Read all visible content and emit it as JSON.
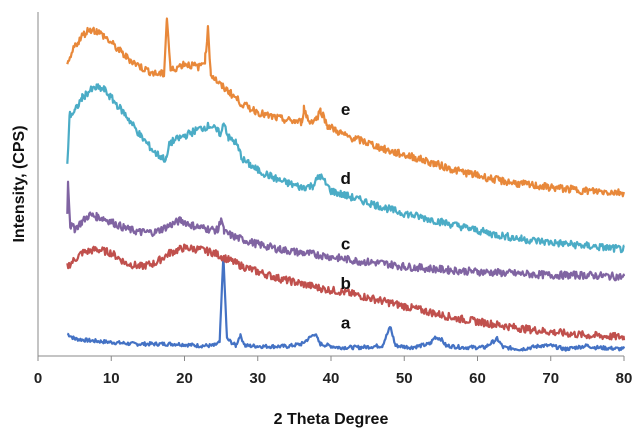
{
  "chart_data": {
    "type": "line",
    "title": "",
    "xlabel": "2 Theta Degree",
    "ylabel": "Intensity, (CPS)",
    "xlim": [
      0,
      80
    ],
    "ylim": [
      0,
      100
    ],
    "x_ticks": [
      0,
      10,
      20,
      30,
      40,
      50,
      60,
      70,
      80
    ],
    "y_ticks_shown": false,
    "grid": false,
    "legend": "none (series labelled on chart)",
    "series": [
      {
        "name": "a",
        "color": "#4472c4",
        "points": [
          [
            4,
            6.5
          ],
          [
            5,
            5
          ],
          [
            7,
            4.5
          ],
          [
            10,
            4
          ],
          [
            13,
            3.5
          ],
          [
            16,
            3.5
          ],
          [
            19,
            3.5
          ],
          [
            22,
            3
          ],
          [
            24,
            3
          ],
          [
            24.8,
            4
          ],
          [
            25.3,
            29
          ],
          [
            25.8,
            5
          ],
          [
            27,
            3
          ],
          [
            27.6,
            6
          ],
          [
            28.3,
            3
          ],
          [
            31,
            2.8
          ],
          [
            34,
            2.8
          ],
          [
            36,
            3.5
          ],
          [
            37.8,
            6.5
          ],
          [
            38.5,
            3.5
          ],
          [
            41,
            2.5
          ],
          [
            44,
            2.5
          ],
          [
            47,
            3
          ],
          [
            48.1,
            8.5
          ],
          [
            48.8,
            3
          ],
          [
            51,
            2.5
          ],
          [
            53.5,
            3.5
          ],
          [
            54.2,
            5.5
          ],
          [
            55,
            5
          ],
          [
            55.7,
            3
          ],
          [
            58,
            2.5
          ],
          [
            61,
            2.5
          ],
          [
            62.7,
            5
          ],
          [
            63.5,
            2.5
          ],
          [
            66,
            2
          ],
          [
            68.7,
            3
          ],
          [
            70,
            3
          ],
          [
            72,
            2
          ],
          [
            75,
            3
          ],
          [
            76,
            2.5
          ],
          [
            80,
            2
          ]
        ],
        "label_pos": [
          42,
          8
        ]
      },
      {
        "name": "b",
        "color": "#c0504d",
        "points": [
          [
            4,
            26
          ],
          [
            6,
            30
          ],
          [
            8,
            31
          ],
          [
            10,
            30
          ],
          [
            12,
            27
          ],
          [
            14,
            26
          ],
          [
            16,
            27
          ],
          [
            18,
            30
          ],
          [
            20,
            31.5
          ],
          [
            22,
            31
          ],
          [
            24,
            30
          ],
          [
            26,
            28
          ],
          [
            28,
            26
          ],
          [
            30,
            24.5
          ],
          [
            33,
            22.5
          ],
          [
            36,
            21
          ],
          [
            39,
            19.5
          ],
          [
            42,
            18.5
          ],
          [
            45,
            17
          ],
          [
            48,
            15.5
          ],
          [
            51,
            14
          ],
          [
            54,
            12.5
          ],
          [
            57,
            11
          ],
          [
            60,
            10
          ],
          [
            63,
            9
          ],
          [
            66,
            8
          ],
          [
            70,
            7
          ],
          [
            75,
            6
          ],
          [
            80,
            5.5
          ]
        ],
        "label_pos": [
          42,
          19.5
        ]
      },
      {
        "name": "c",
        "color": "#8064a2",
        "points": [
          [
            4,
            41
          ],
          [
            4.1,
            51
          ],
          [
            4.4,
            38
          ],
          [
            5,
            37
          ],
          [
            6,
            39
          ],
          [
            7,
            41
          ],
          [
            8,
            40.5
          ],
          [
            9,
            40
          ],
          [
            10,
            39
          ],
          [
            12,
            37
          ],
          [
            14,
            36
          ],
          [
            16,
            36
          ],
          [
            18,
            38
          ],
          [
            19.5,
            39.5
          ],
          [
            21,
            38
          ],
          [
            23,
            37
          ],
          [
            24.6,
            36.5
          ],
          [
            25,
            40.5
          ],
          [
            25.4,
            36
          ],
          [
            27,
            34.5
          ],
          [
            30,
            32.5
          ],
          [
            33,
            31
          ],
          [
            36,
            30
          ],
          [
            38,
            29.5
          ],
          [
            41,
            28.5
          ],
          [
            44,
            27.5
          ],
          [
            47,
            27
          ],
          [
            50,
            26
          ],
          [
            53,
            25.5
          ],
          [
            56,
            25
          ],
          [
            60,
            24.5
          ],
          [
            65,
            24
          ],
          [
            70,
            23.5
          ],
          [
            75,
            23.5
          ],
          [
            80,
            23
          ]
        ],
        "label_pos": [
          42,
          31
        ]
      },
      {
        "name": "d",
        "color": "#4bacc6",
        "points": [
          [
            4,
            55
          ],
          [
            4.3,
            70
          ],
          [
            5,
            71
          ],
          [
            6,
            75
          ],
          [
            7,
            77
          ],
          [
            8,
            78
          ],
          [
            9,
            77.5
          ],
          [
            10,
            75
          ],
          [
            12,
            70
          ],
          [
            14,
            64
          ],
          [
            16,
            59
          ],
          [
            17.5,
            57
          ],
          [
            18,
            62
          ],
          [
            20,
            64
          ],
          [
            22,
            66
          ],
          [
            23.5,
            67
          ],
          [
            25,
            64.5
          ],
          [
            25.4,
            68
          ],
          [
            26,
            63.5
          ],
          [
            27,
            62
          ],
          [
            28,
            57
          ],
          [
            30,
            54
          ],
          [
            33,
            51
          ],
          [
            36,
            49
          ],
          [
            37.5,
            49.5
          ],
          [
            38.5,
            52.5
          ],
          [
            40,
            48
          ],
          [
            43,
            46
          ],
          [
            46,
            44
          ],
          [
            49,
            42
          ],
          [
            52,
            40.5
          ],
          [
            55,
            39
          ],
          [
            58,
            37.5
          ],
          [
            62,
            35.5
          ],
          [
            66,
            34
          ],
          [
            70,
            33
          ],
          [
            75,
            32
          ],
          [
            80,
            31
          ]
        ],
        "label_pos": [
          42,
          50
        ]
      },
      {
        "name": "e",
        "color": "#e8883a",
        "points": [
          [
            4,
            84
          ],
          [
            5,
            90
          ],
          [
            6,
            93
          ],
          [
            7,
            95
          ],
          [
            8,
            94.5
          ],
          [
            9,
            93
          ],
          [
            10,
            91
          ],
          [
            12,
            87
          ],
          [
            14,
            84
          ],
          [
            16,
            82
          ],
          [
            17.2,
            82
          ],
          [
            17.6,
            98.5
          ],
          [
            18.1,
            83
          ],
          [
            20,
            85
          ],
          [
            22,
            84
          ],
          [
            22.8,
            86
          ],
          [
            23.2,
            95
          ],
          [
            23.6,
            82
          ],
          [
            25,
            78.5
          ],
          [
            26,
            77
          ],
          [
            28,
            73
          ],
          [
            31,
            70
          ],
          [
            34,
            68.5
          ],
          [
            36,
            68
          ],
          [
            36.3,
            72
          ],
          [
            37,
            68
          ],
          [
            38,
            69
          ],
          [
            38.6,
            71.5
          ],
          [
            39.5,
            67
          ],
          [
            42,
            64
          ],
          [
            45,
            62
          ],
          [
            48,
            59.5
          ],
          [
            51,
            58
          ],
          [
            54,
            56
          ],
          [
            57,
            54
          ],
          [
            60,
            52.5
          ],
          [
            63,
            51
          ],
          [
            66,
            50
          ],
          [
            70,
            49
          ],
          [
            75,
            48
          ],
          [
            80,
            47.5
          ]
        ],
        "label_pos": [
          42,
          70
        ]
      }
    ]
  }
}
